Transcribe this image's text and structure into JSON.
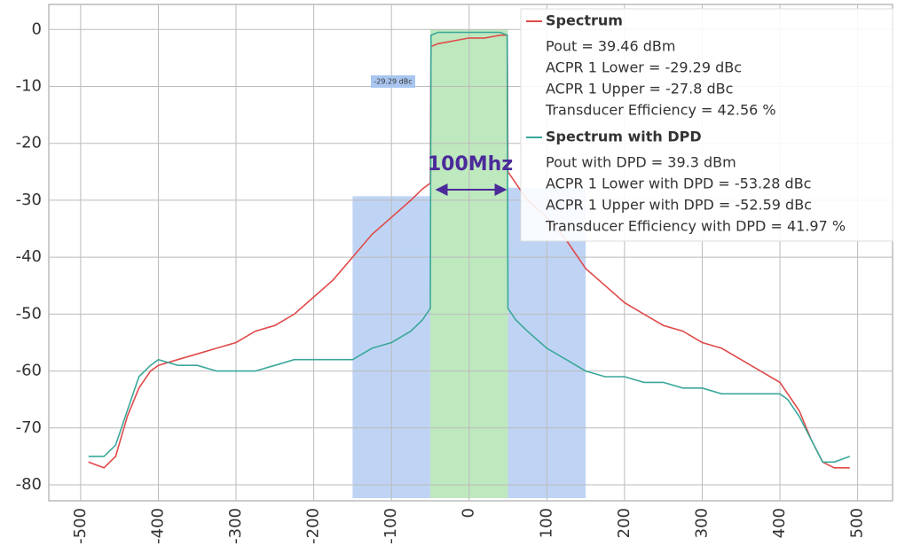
{
  "chart_data": {
    "type": "line",
    "x": [
      -490,
      -470,
      -455,
      -440,
      -425,
      -410,
      -400,
      -375,
      -350,
      -325,
      -300,
      -275,
      -250,
      -225,
      -200,
      -175,
      -150,
      -125,
      -100,
      -75,
      -60,
      -50,
      -49,
      -40,
      -20,
      0,
      20,
      40,
      49,
      50,
      60,
      75,
      100,
      125,
      150,
      175,
      200,
      225,
      250,
      275,
      300,
      325,
      350,
      375,
      400,
      410,
      425,
      440,
      455,
      470,
      490
    ],
    "series": [
      {
        "name": "Spectrum",
        "color": "#e04a4a",
        "details": [
          "Pout = 39.46 dBm",
          "ACPR 1 Lower = -29.29 dBc",
          "ACPR 1 Upper = -27.8 dBc",
          "Transducer Efficiency = 42.56 %"
        ],
        "values": [
          -76,
          -77,
          -75,
          -68,
          -63,
          -60,
          -59,
          -58,
          -57,
          -56,
          -55,
          -53,
          -52,
          -50,
          -47,
          -44,
          -40,
          -36,
          -33,
          -30,
          -28,
          -27,
          -3,
          -2.5,
          -2,
          -1.5,
          -1.5,
          -1,
          -1,
          -25,
          -27,
          -30,
          -33,
          -37,
          -42,
          -45,
          -48,
          -50,
          -52,
          -53,
          -55,
          -56,
          -58,
          -60,
          -62,
          -64,
          -67,
          -72,
          -76,
          -77,
          -77
        ]
      },
      {
        "name": "Spectrum with DPD",
        "color": "#3aa89a",
        "details": [
          "Pout with DPD = 39.3 dBm",
          "ACPR 1 Lower with DPD = -53.28 dBc",
          "ACPR 1 Upper with DPD = -52.59 dBc",
          "Transducer Efficiency with DPD = 41.97 %"
        ],
        "values": [
          -75,
          -75,
          -73,
          -67,
          -61,
          -59,
          -58,
          -59,
          -59,
          -60,
          -60,
          -60,
          -59,
          -58,
          -58,
          -58,
          -58,
          -56,
          -55,
          -53,
          -51,
          -49,
          -1,
          -0.5,
          -0.5,
          -0.5,
          -0.5,
          -0.5,
          -1,
          -49,
          -51,
          -53,
          -56,
          -58,
          -60,
          -61,
          -61,
          -62,
          -62,
          -63,
          -63,
          -64,
          -64,
          -64,
          -64,
          -65,
          -68,
          -72,
          -76,
          -76,
          -75
        ]
      }
    ],
    "bands": [
      {
        "x": [
          -150,
          -50
        ],
        "top": -29.29,
        "color": "#a9c6f0"
      },
      {
        "x": [
          -50,
          50
        ],
        "top": 0,
        "color": "#a8e0a8"
      },
      {
        "x": [
          50,
          150
        ],
        "top": -27.8,
        "color": "#a9c6f0"
      }
    ],
    "band_label": "-29.29 dBc",
    "annotation": "100Mhz",
    "xlim": [
      -541,
      545
    ],
    "ylim": [
      -82.8,
      4.4
    ],
    "xticks": [
      -500,
      -400,
      -300,
      -200,
      -100,
      0,
      100,
      200,
      300,
      400,
      500
    ],
    "yticks": [
      0,
      -10,
      -20,
      -30,
      -40,
      -50,
      -60,
      -70,
      -80
    ],
    "grid": true
  }
}
